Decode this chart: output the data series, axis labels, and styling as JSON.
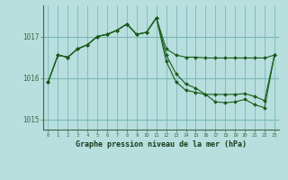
{
  "title": "Graphe pression niveau de la mer (hPa)",
  "background_color": "#b8dede",
  "grid_color": "#7ab8b8",
  "line_color": "#1a5c1a",
  "marker_color": "#1a5c1a",
  "ylim": [
    1014.75,
    1017.75
  ],
  "xlim": [
    -0.5,
    23.5
  ],
  "yticks": [
    1015,
    1016,
    1017
  ],
  "xticks": [
    0,
    1,
    2,
    3,
    4,
    5,
    6,
    7,
    8,
    9,
    10,
    11,
    12,
    13,
    14,
    15,
    16,
    17,
    18,
    19,
    20,
    21,
    22,
    23
  ],
  "series": [
    {
      "x": [
        0,
        1,
        2,
        3,
        4,
        5,
        6,
        7,
        8,
        9,
        10,
        11,
        12,
        13,
        14,
        15,
        16,
        17,
        18,
        19,
        20,
        21,
        22,
        23
      ],
      "y": [
        1015.9,
        1016.55,
        1016.5,
        1016.7,
        1016.8,
        1017.0,
        1017.05,
        1017.15,
        1017.3,
        1017.05,
        1017.1,
        1017.45,
        1016.7,
        1016.55,
        1016.5,
        1016.5,
        1016.48,
        1016.48,
        1016.48,
        1016.48,
        1016.48,
        1016.48,
        1016.48,
        1016.55
      ]
    },
    {
      "x": [
        0,
        1,
        2,
        3,
        4,
        5,
        6,
        7,
        8,
        9,
        10,
        11,
        12,
        13,
        14,
        15,
        16,
        17,
        18,
        19,
        20,
        21,
        22,
        23
      ],
      "y": [
        1015.9,
        1016.55,
        1016.5,
        1016.7,
        1016.8,
        1017.0,
        1017.05,
        1017.15,
        1017.3,
        1017.05,
        1017.1,
        1017.45,
        1016.4,
        1015.9,
        1015.7,
        1015.65,
        1015.6,
        1015.6,
        1015.6,
        1015.6,
        1015.62,
        1015.55,
        1015.45,
        1016.55
      ]
    },
    {
      "x": [
        0,
        1,
        2,
        3,
        4,
        5,
        6,
        7,
        8,
        9,
        10,
        11,
        12,
        13,
        14,
        15,
        16,
        17,
        18,
        19,
        20,
        21,
        22,
        23
      ],
      "y": [
        1015.9,
        1016.55,
        1016.5,
        1016.7,
        1016.8,
        1017.0,
        1017.05,
        1017.15,
        1017.3,
        1017.05,
        1017.1,
        1017.45,
        1016.55,
        1016.1,
        1015.85,
        1015.75,
        1015.6,
        1015.42,
        1015.4,
        1015.42,
        1015.48,
        1015.35,
        1015.28,
        1016.55
      ]
    }
  ]
}
